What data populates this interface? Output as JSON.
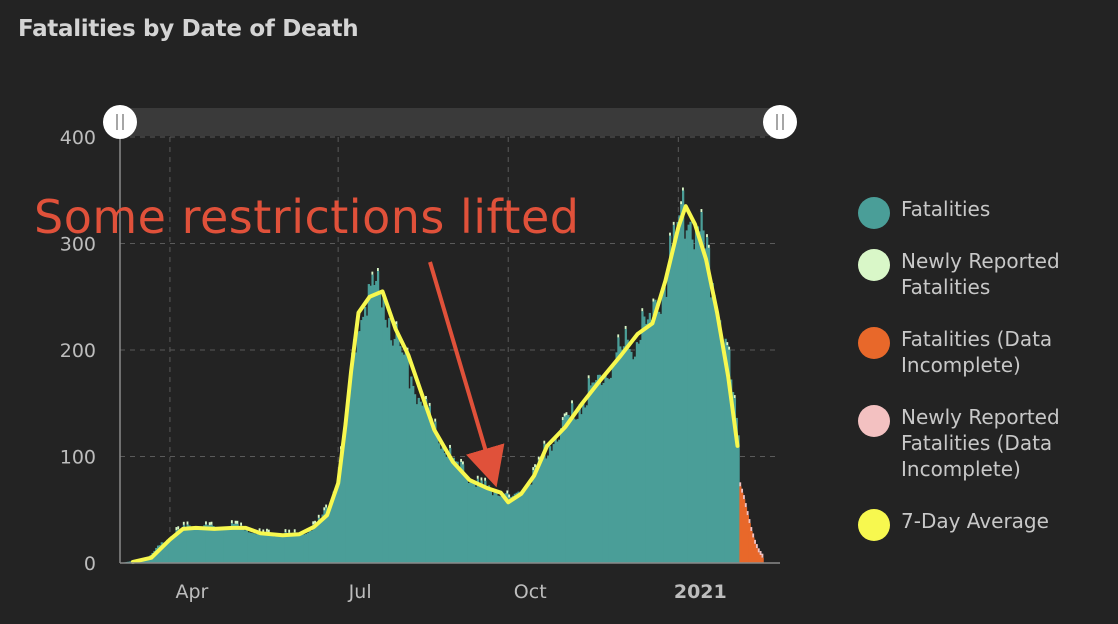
{
  "title": "Fatalities by Date of Death",
  "annotation": "Some restrictions lifted",
  "colors": {
    "fatalities": "#4a9e98",
    "newly_reported": "#d9f7c8",
    "incomplete": "#e8682a",
    "newly_reported_incomplete": "#f3c1c1",
    "average": "#f7f84f",
    "arrow": "#e0513a"
  },
  "legend": [
    {
      "label": "Fatalities",
      "color": "#4a9e98"
    },
    {
      "label": "Newly Reported Fatalities",
      "color": "#d9f7c8"
    },
    {
      "label": "Fatalities (Data Incomplete)",
      "color": "#e8682a"
    },
    {
      "label": "Newly Reported Fatalities (Data Incomplete)",
      "color": "#f3c1c1"
    },
    {
      "label": "7-Day Average",
      "color": "#f7f84f"
    }
  ],
  "chart_data": {
    "type": "bar",
    "title": "Fatalities by Date of Death",
    "x_range": [
      "2020-03-05",
      "2021-02-25"
    ],
    "ylim": [
      0,
      400
    ],
    "y_ticks": [
      0,
      100,
      200,
      300,
      400
    ],
    "x_ticks": [
      {
        "date": "2020-04-01",
        "label": "Apr",
        "bold": false
      },
      {
        "date": "2020-07-01",
        "label": "Jul",
        "bold": false
      },
      {
        "date": "2020-10-01",
        "label": "Oct",
        "bold": false
      },
      {
        "date": "2021-01-01",
        "label": "2021",
        "bold": true
      }
    ],
    "grid": true,
    "legend_position": "right",
    "series": [
      {
        "name": "Fatalities",
        "values_by_date": [
          [
            "2020-03-05",
            0
          ],
          [
            "2020-03-15",
            3
          ],
          [
            "2020-03-20",
            5
          ],
          [
            "2020-03-25",
            15
          ],
          [
            "2020-04-01",
            25
          ],
          [
            "2020-04-08",
            33
          ],
          [
            "2020-04-15",
            35
          ],
          [
            "2020-04-25",
            33
          ],
          [
            "2020-05-05",
            35
          ],
          [
            "2020-05-12",
            32
          ],
          [
            "2020-05-20",
            27
          ],
          [
            "2020-06-01",
            27
          ],
          [
            "2020-06-10",
            27
          ],
          [
            "2020-06-18",
            35
          ],
          [
            "2020-06-25",
            50
          ],
          [
            "2020-07-01",
            85
          ],
          [
            "2020-07-05",
            140
          ],
          [
            "2020-07-08",
            190
          ],
          [
            "2020-07-12",
            235
          ],
          [
            "2020-07-18",
            255
          ],
          [
            "2020-07-25",
            250
          ],
          [
            "2020-08-01",
            210
          ],
          [
            "2020-08-08",
            180
          ],
          [
            "2020-08-15",
            150
          ],
          [
            "2020-08-22",
            125
          ],
          [
            "2020-09-01",
            95
          ],
          [
            "2020-09-10",
            78
          ],
          [
            "2020-09-20",
            70
          ],
          [
            "2020-09-27",
            67
          ],
          [
            "2020-10-01",
            58
          ],
          [
            "2020-10-08",
            68
          ],
          [
            "2020-10-15",
            85
          ],
          [
            "2020-10-22",
            110
          ],
          [
            "2020-11-01",
            130
          ],
          [
            "2020-11-10",
            155
          ],
          [
            "2020-11-20",
            175
          ],
          [
            "2020-12-01",
            200
          ],
          [
            "2020-12-10",
            215
          ],
          [
            "2020-12-18",
            230
          ],
          [
            "2020-12-25",
            270
          ],
          [
            "2021-01-01",
            315
          ],
          [
            "2021-01-05",
            335
          ],
          [
            "2021-01-10",
            320
          ],
          [
            "2021-01-16",
            290
          ],
          [
            "2021-01-22",
            240
          ],
          [
            "2021-01-28",
            185
          ],
          [
            "2021-02-02",
            120
          ]
        ]
      },
      {
        "name": "Fatalities (Data Incomplete)",
        "values_by_date": [
          [
            "2021-02-03",
            72
          ],
          [
            "2021-02-05",
            60
          ],
          [
            "2021-02-07",
            45
          ],
          [
            "2021-02-09",
            30
          ],
          [
            "2021-02-11",
            18
          ],
          [
            "2021-02-13",
            10
          ],
          [
            "2021-02-15",
            5
          ]
        ]
      },
      {
        "name": "7-Day Average",
        "values_by_date": [
          [
            "2020-03-12",
            1
          ],
          [
            "2020-03-22",
            5
          ],
          [
            "2020-04-01",
            22
          ],
          [
            "2020-04-08",
            32
          ],
          [
            "2020-04-15",
            33
          ],
          [
            "2020-04-25",
            32
          ],
          [
            "2020-05-05",
            33
          ],
          [
            "2020-05-12",
            33
          ],
          [
            "2020-05-20",
            28
          ],
          [
            "2020-06-01",
            26
          ],
          [
            "2020-06-10",
            27
          ],
          [
            "2020-06-18",
            34
          ],
          [
            "2020-06-25",
            45
          ],
          [
            "2020-07-01",
            75
          ],
          [
            "2020-07-05",
            130
          ],
          [
            "2020-07-08",
            180
          ],
          [
            "2020-07-12",
            235
          ],
          [
            "2020-07-18",
            250
          ],
          [
            "2020-07-25",
            255
          ],
          [
            "2020-08-01",
            220
          ],
          [
            "2020-08-08",
            195
          ],
          [
            "2020-08-15",
            160
          ],
          [
            "2020-08-22",
            125
          ],
          [
            "2020-09-01",
            95
          ],
          [
            "2020-09-10",
            78
          ],
          [
            "2020-09-20",
            70
          ],
          [
            "2020-09-27",
            66
          ],
          [
            "2020-10-01",
            57
          ],
          [
            "2020-10-08",
            65
          ],
          [
            "2020-10-15",
            82
          ],
          [
            "2020-10-22",
            110
          ],
          [
            "2020-11-01",
            128
          ],
          [
            "2020-11-10",
            150
          ],
          [
            "2020-11-20",
            172
          ],
          [
            "2020-12-01",
            195
          ],
          [
            "2020-12-10",
            215
          ],
          [
            "2020-12-18",
            225
          ],
          [
            "2020-12-25",
            265
          ],
          [
            "2021-01-01",
            315
          ],
          [
            "2021-01-05",
            335
          ],
          [
            "2021-01-10",
            318
          ],
          [
            "2021-01-16",
            285
          ],
          [
            "2021-01-22",
            235
          ],
          [
            "2021-01-28",
            175
          ],
          [
            "2021-02-02",
            110
          ]
        ]
      }
    ]
  }
}
